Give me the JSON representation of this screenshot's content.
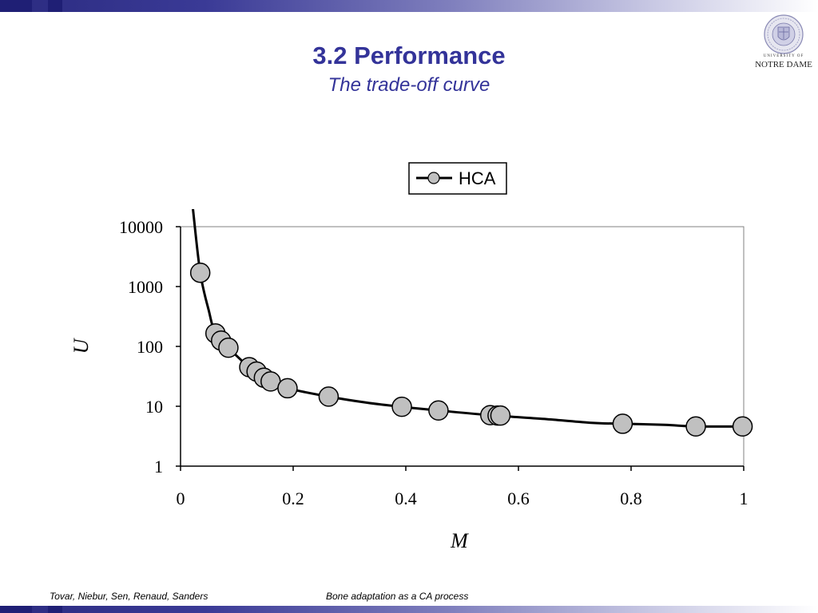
{
  "slide": {
    "title": "3.2 Performance",
    "subtitle": "The trade-off curve",
    "footer_left": "Tovar, Niebur, Sen, Renaud, Sanders",
    "footer_center": "Bone adaptation as a CA process",
    "logo_top": "UNIVERSITY OF",
    "logo_bottom": "NOTRE DAME",
    "logo_icon": "university-seal-icon",
    "accent_color": "#333399"
  },
  "chart_data": {
    "type": "scatter",
    "title": "",
    "xlabel": "M",
    "ylabel": "U",
    "xlim": [
      0,
      1
    ],
    "ylim": [
      1,
      10000
    ],
    "y_scale": "log",
    "x_ticks": [
      "0",
      "0.2",
      "0.4",
      "0.6",
      "0.8",
      "1"
    ],
    "y_ticks": [
      "1",
      "10",
      "100",
      "1000",
      "10000"
    ],
    "legend": {
      "position": "top",
      "entries": [
        "HCA"
      ]
    },
    "grid": false,
    "series": [
      {
        "name": "HCA",
        "color": "#c0c0c0",
        "points": [
          [
            0.035,
            1700
          ],
          [
            0.062,
            165
          ],
          [
            0.072,
            125
          ],
          [
            0.085,
            95
          ],
          [
            0.122,
            45
          ],
          [
            0.135,
            38
          ],
          [
            0.148,
            30
          ],
          [
            0.16,
            26
          ],
          [
            0.19,
            20
          ],
          [
            0.263,
            14.5
          ],
          [
            0.393,
            9.8
          ],
          [
            0.458,
            8.5
          ],
          [
            0.55,
            7.1
          ],
          [
            0.563,
            7.0
          ],
          [
            0.568,
            7.0
          ],
          [
            0.785,
            5.1
          ],
          [
            0.915,
            4.6
          ],
          [
            0.998,
            4.6
          ]
        ],
        "curve": [
          [
            0.022,
            20000
          ],
          [
            0.035,
            1700
          ],
          [
            0.05,
            400
          ],
          [
            0.062,
            165
          ],
          [
            0.085,
            95
          ],
          [
            0.122,
            45
          ],
          [
            0.16,
            26
          ],
          [
            0.19,
            20
          ],
          [
            0.263,
            14.5
          ],
          [
            0.33,
            11.5
          ],
          [
            0.393,
            9.8
          ],
          [
            0.458,
            8.5
          ],
          [
            0.55,
            7.1
          ],
          [
            0.65,
            6.1
          ],
          [
            0.73,
            5.3
          ],
          [
            0.785,
            5.1
          ],
          [
            0.86,
            4.9
          ],
          [
            0.915,
            4.6
          ],
          [
            0.998,
            4.6
          ]
        ]
      }
    ]
  }
}
